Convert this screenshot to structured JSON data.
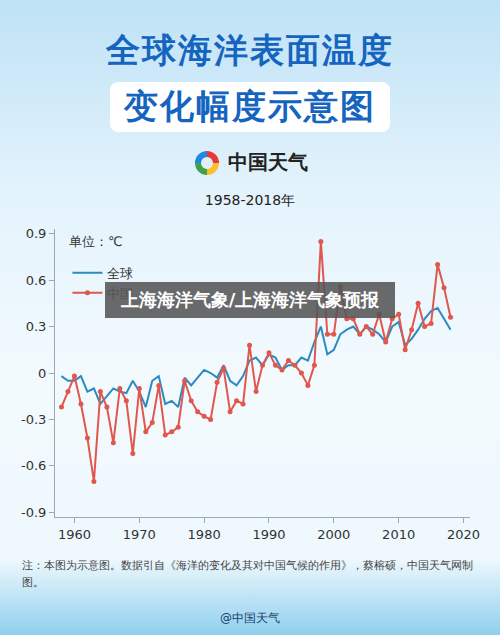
{
  "chart_data": {
    "type": "line",
    "title": [
      "全球海洋表面温度",
      "变化幅度示意图"
    ],
    "brand": "中国天气",
    "subtitle": "1958-2018年",
    "unit": "单位：℃",
    "banner": "上海海洋气象/上海海洋气象预报",
    "note": "注：本图为示意图。数据引自《海洋的变化及其对中国气候的作用》，蔡榕硕，中国天气网制图。",
    "credit": "@中国天气",
    "x": [
      1958,
      1959,
      1960,
      1961,
      1962,
      1963,
      1964,
      1965,
      1966,
      1967,
      1968,
      1969,
      1970,
      1971,
      1972,
      1973,
      1974,
      1975,
      1976,
      1977,
      1978,
      1979,
      1980,
      1981,
      1982,
      1983,
      1984,
      1985,
      1986,
      1987,
      1988,
      1989,
      1990,
      1991,
      1992,
      1993,
      1994,
      1995,
      1996,
      1997,
      1998,
      1999,
      2000,
      2001,
      2002,
      2003,
      2004,
      2005,
      2006,
      2007,
      2008,
      2009,
      2010,
      2011,
      2012,
      2013,
      2014,
      2015,
      2016,
      2017,
      2018
    ],
    "series": [
      {
        "name": "全球",
        "color": "#2a8bc4",
        "marker": "none",
        "values": [
          -0.02,
          -0.05,
          -0.05,
          -0.02,
          -0.12,
          -0.1,
          -0.2,
          -0.15,
          -0.1,
          -0.12,
          -0.13,
          -0.05,
          -0.12,
          -0.22,
          -0.05,
          -0.02,
          -0.2,
          -0.18,
          -0.22,
          -0.03,
          -0.08,
          -0.03,
          0.02,
          0.0,
          -0.03,
          0.05,
          -0.05,
          -0.08,
          -0.02,
          0.08,
          0.1,
          0.05,
          0.12,
          0.1,
          0.02,
          0.05,
          0.05,
          0.1,
          0.08,
          0.2,
          0.3,
          0.12,
          0.15,
          0.25,
          0.28,
          0.3,
          0.25,
          0.3,
          0.28,
          0.25,
          0.2,
          0.3,
          0.33,
          0.18,
          0.22,
          0.28,
          0.35,
          0.4,
          0.42,
          0.35,
          0.28
        ]
      },
      {
        "name": "中国",
        "color": "#e0574d",
        "marker": "circle",
        "values": [
          -0.22,
          -0.12,
          -0.02,
          -0.2,
          -0.42,
          -0.7,
          -0.12,
          -0.22,
          -0.45,
          -0.1,
          -0.18,
          -0.52,
          -0.1,
          -0.38,
          -0.32,
          -0.08,
          -0.4,
          -0.38,
          -0.35,
          -0.05,
          -0.18,
          -0.25,
          -0.28,
          -0.3,
          -0.06,
          0.03,
          -0.25,
          -0.18,
          -0.2,
          0.18,
          -0.12,
          0.05,
          0.13,
          0.05,
          0.02,
          0.08,
          0.05,
          0.0,
          -0.08,
          0.05,
          0.85,
          0.25,
          0.25,
          0.56,
          0.35,
          0.35,
          0.25,
          0.3,
          0.25,
          0.38,
          0.2,
          0.35,
          0.38,
          0.15,
          0.28,
          0.45,
          0.3,
          0.32,
          0.7,
          0.55,
          0.36
        ]
      }
    ],
    "xlim": [
      1957,
      2021
    ],
    "xticks": [
      1960,
      1970,
      1980,
      1990,
      2000,
      2010,
      2020
    ],
    "ylim": [
      -0.93,
      0.93
    ],
    "yticks": [
      -0.9,
      -0.6,
      -0.3,
      0,
      0.3,
      0.6,
      0.9
    ],
    "grid": false,
    "legend": "top-left"
  }
}
